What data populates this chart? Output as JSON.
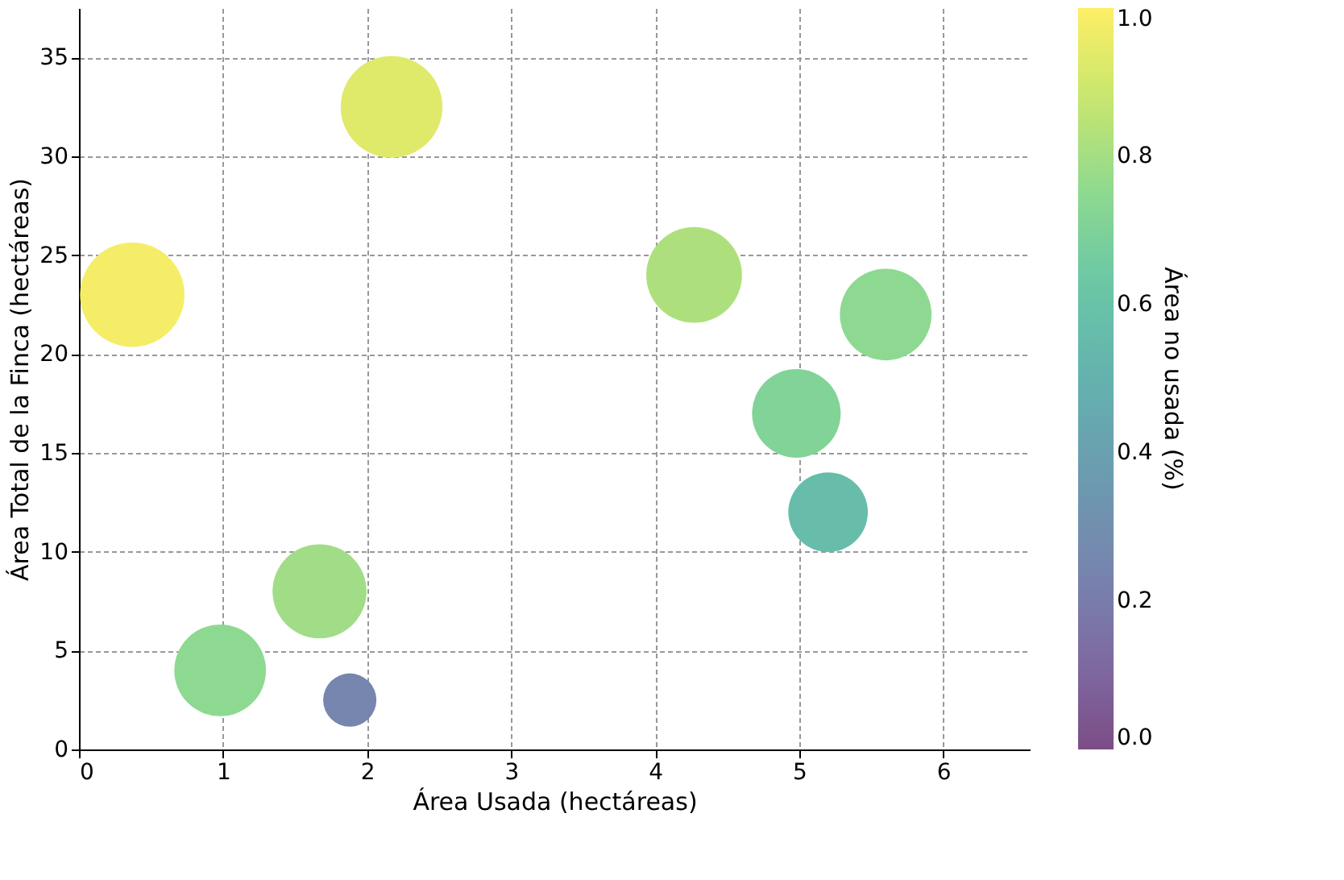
{
  "chart_data": {
    "type": "bubble",
    "xlabel": "Área Usada (hectáreas)",
    "ylabel": "Área Total de la Finca (hectáreas)",
    "clabel": "Área no usada (%)",
    "x": [
      0.37,
      2.17,
      4.27,
      5.6,
      4.98,
      5.2,
      1.67,
      0.98,
      1.88
    ],
    "values": [
      23,
      32.5,
      24,
      22,
      17,
      12,
      8,
      4,
      2.5
    ],
    "cvalues": [
      0.98,
      0.93,
      0.82,
      0.75,
      0.71,
      0.57,
      0.79,
      0.75,
      0.25
    ],
    "sizes": [
      1,
      0.95,
      0.84,
      0.77,
      0.72,
      0.58,
      0.81,
      0.77,
      0.26
    ],
    "xlim": [
      0,
      6.6
    ],
    "xticks": [
      0,
      1,
      2,
      3,
      4,
      5,
      6
    ],
    "ylim": [
      0,
      37.5
    ],
    "yticks": [
      0,
      5,
      10,
      15,
      20,
      25,
      30,
      35
    ],
    "clim": [
      0,
      1
    ],
    "cticks": [
      {
        "value": 0,
        "label": "0.0"
      },
      0.2,
      0.4,
      0.6,
      0.8,
      {
        "value": 1,
        "label": "1.0"
      }
    ],
    "grid": true
  }
}
